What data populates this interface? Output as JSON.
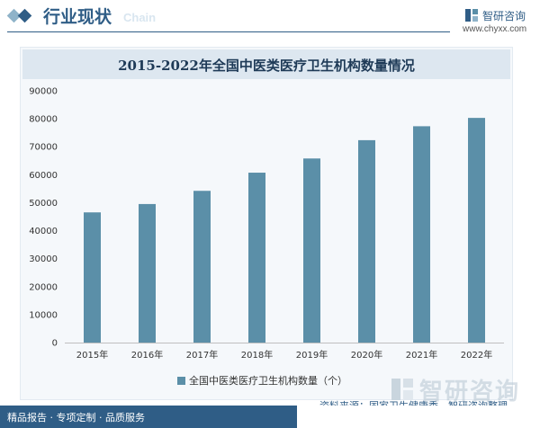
{
  "header": {
    "title": "行业现状",
    "ghost_text": "Chain",
    "brand_name": "智研咨询",
    "brand_url": "www.chyxx.com"
  },
  "chart_data": {
    "type": "bar",
    "title": "2015-2022年全国中医类医疗卫生机构数量情况",
    "categories": [
      "2015年",
      "2016年",
      "2017年",
      "2018年",
      "2019年",
      "2020年",
      "2021年",
      "2022年"
    ],
    "series": [
      {
        "name": "全国中医类医疗卫生机构数量（个）",
        "values": [
          46541,
          49527,
          54243,
          60738,
          65809,
          72355,
          77336,
          80319
        ]
      }
    ],
    "ylim": [
      0,
      90000
    ],
    "yticks": [
      0,
      10000,
      20000,
      30000,
      40000,
      50000,
      60000,
      70000,
      80000,
      90000
    ],
    "xlabel": "",
    "ylabel": "",
    "grid": false,
    "legend_position": "bottom",
    "bar_color": "#5b8fa8"
  },
  "footer": {
    "source": "资料来源：国家卫生健康委，智研咨询整理",
    "tagline": "精品报告 · 专项定制 · 品质服务",
    "watermark": "智研咨询"
  },
  "colors": {
    "brand": "#2f5d86",
    "bar": "#5b8fa8"
  }
}
